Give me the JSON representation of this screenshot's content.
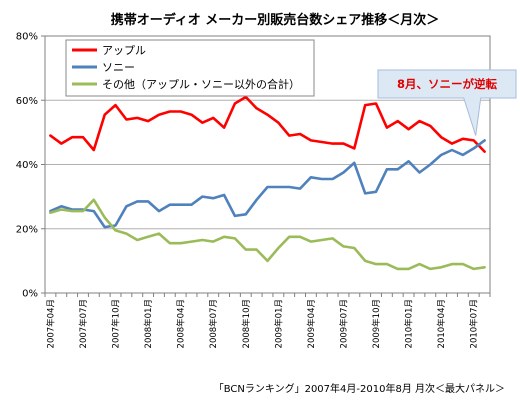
{
  "chart_data": {
    "type": "line",
    "title": "携帯オーディオ メーカー別販売台数シェア推移＜月次＞",
    "source": "「BCNランキング」2007年4月-2010年8月 月次＜最大パネル＞",
    "ylim": [
      0,
      80
    ],
    "yticks": [
      "0%",
      "20%",
      "40%",
      "60%",
      "80%"
    ],
    "ytick_values": [
      0,
      20,
      40,
      60,
      80
    ],
    "grid": "horizontal",
    "legend_position": "top-left",
    "annotation": "8月、ソニーが逆転",
    "x": [
      "2007年04月",
      "2007年05月",
      "2007年06月",
      "2007年07月",
      "2007年08月",
      "2007年09月",
      "2007年10月",
      "2007年11月",
      "2007年12月",
      "2008年01月",
      "2008年02月",
      "2008年03月",
      "2008年04月",
      "2008年05月",
      "2008年06月",
      "2008年07月",
      "2008年08月",
      "2008年09月",
      "2008年10月",
      "2008年11月",
      "2008年12月",
      "2009年01月",
      "2009年02月",
      "2009年03月",
      "2009年04月",
      "2009年05月",
      "2009年06月",
      "2009年07月",
      "2009年08月",
      "2009年09月",
      "2009年10月",
      "2009年11月",
      "2009年12月",
      "2010年01月",
      "2010年02月",
      "2010年03月",
      "2010年04月",
      "2010年05月",
      "2010年06月",
      "2010年07月",
      "2010年08月"
    ],
    "xtick_labels": [
      "2007年04月",
      "",
      "",
      "2007年07月",
      "",
      "",
      "2007年10月",
      "",
      "",
      "2008年01月",
      "",
      "",
      "2008年04月",
      "",
      "",
      "2008年07月",
      "",
      "",
      "2008年10月",
      "",
      "",
      "2009年01月",
      "",
      "",
      "2009年04月",
      "",
      "",
      "2009年07月",
      "",
      "",
      "2009年10月",
      "",
      "",
      "2010年01月",
      "",
      "",
      "2010年04月",
      "",
      "",
      "2010年07月",
      ""
    ],
    "series": [
      {
        "name": "アップル",
        "color": "#ff0000",
        "values": [
          49.0,
          46.5,
          48.5,
          48.5,
          44.5,
          55.5,
          58.5,
          54.0,
          54.5,
          53.5,
          55.5,
          56.5,
          56.5,
          55.5,
          53.0,
          54.5,
          51.5,
          59.0,
          61.0,
          57.5,
          55.5,
          53.0,
          49.0,
          49.5,
          47.5,
          47.0,
          46.5,
          46.5,
          45.0,
          58.5,
          59.0,
          51.5,
          53.5,
          51.0,
          53.5,
          52.0,
          48.5,
          46.5,
          48.0,
          47.5,
          44.0
        ]
      },
      {
        "name": "ソニー",
        "color": "#4f81bd",
        "values": [
          25.5,
          27.0,
          26.0,
          26.0,
          25.5,
          20.5,
          21.0,
          27.0,
          28.5,
          28.5,
          25.5,
          27.5,
          27.5,
          27.5,
          30.0,
          29.5,
          30.5,
          24.0,
          24.5,
          29.0,
          33.0,
          33.0,
          33.0,
          32.5,
          36.0,
          35.5,
          35.5,
          37.5,
          40.5,
          31.0,
          31.5,
          38.5,
          38.5,
          41.0,
          37.5,
          40.0,
          43.0,
          44.5,
          43.0,
          45.0,
          47.5
        ]
      },
      {
        "name": "その他（アップル・ソニー以外の合計）",
        "color": "#9bbb59",
        "values": [
          25.0,
          26.0,
          25.5,
          25.5,
          29.0,
          23.5,
          19.5,
          18.5,
          16.5,
          17.5,
          18.5,
          15.5,
          15.5,
          16.0,
          16.5,
          16.0,
          17.5,
          17.0,
          13.5,
          13.5,
          10.0,
          14.0,
          17.5,
          17.5,
          16.0,
          16.5,
          17.0,
          14.5,
          14.0,
          10.0,
          9.0,
          9.0,
          7.5,
          7.5,
          9.0,
          7.5,
          8.0,
          9.0,
          9.0,
          7.5,
          8.0
        ]
      }
    ]
  }
}
